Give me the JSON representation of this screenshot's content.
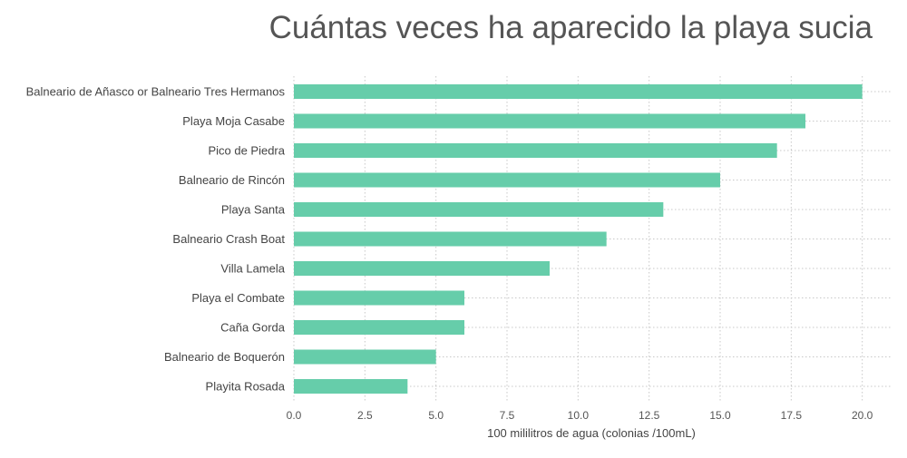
{
  "chart_data": {
    "type": "bar",
    "orientation": "horizontal",
    "title": "Cuántas veces ha aparecido la playa sucia",
    "xlabel": "100 mililitros de agua (colonias /100mL)",
    "ylabel": "",
    "categories": [
      "Balneario de Añasco or Balneario Tres Hermanos",
      "Playa Moja Casabe",
      "Pico de Piedra",
      "Balneario de Rincón",
      "Playa Santa",
      "Balneario Crash Boat",
      "Villa Lamela",
      "Playa el Combate",
      "Caña Gorda",
      "Balneario de Boquerón",
      "Playita Rosada"
    ],
    "values": [
      20,
      18,
      17,
      15,
      13,
      11,
      9,
      6,
      6,
      5,
      4
    ],
    "xlim": [
      0,
      21
    ],
    "xticks": [
      0,
      2.5,
      5,
      7.5,
      10,
      12.5,
      15,
      17.5,
      20
    ],
    "xtick_labels": [
      "0.0",
      "2.5",
      "5.0",
      "7.5",
      "10.0",
      "12.5",
      "15.0",
      "17.5",
      "20.0"
    ],
    "bar_color": "#66cdaa",
    "grid": true,
    "legend": "none"
  }
}
